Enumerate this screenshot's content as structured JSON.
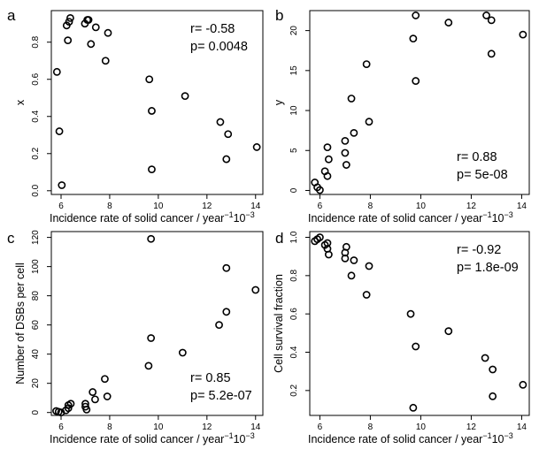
{
  "chart_data": [
    {
      "panel": "a",
      "type": "scatter",
      "xlabel": "Incidence rate of solid cancer / year",
      "xlabel_sup": "−1",
      "xlabel_exp": "10",
      "xlabel_exp_sup": "−3",
      "ylabel": "x",
      "xlim": [
        5.6,
        14.3
      ],
      "ylim": [
        -0.02,
        0.97
      ],
      "xticks": [
        6,
        8,
        10,
        12,
        14
      ],
      "yticks": [
        0.0,
        0.2,
        0.4,
        0.6,
        0.8
      ],
      "ytick_labels": [
        "0.0",
        "0.2",
        "0.4",
        "0.6",
        "0.8"
      ],
      "annotation": [
        "r= -0.58",
        "p= 0.0048"
      ],
      "annotation_pos": "top-right",
      "x": [
        5.83,
        5.93,
        6.03,
        6.23,
        6.28,
        6.33,
        6.38,
        6.98,
        7.08,
        7.13,
        7.23,
        7.43,
        7.83,
        7.93,
        9.63,
        9.73,
        9.73,
        11.1,
        12.55,
        12.8,
        12.87,
        14.05
      ],
      "y": [
        0.64,
        0.32,
        0.03,
        0.89,
        0.81,
        0.91,
        0.93,
        0.9,
        0.92,
        0.92,
        0.79,
        0.88,
        0.7,
        0.85,
        0.6,
        0.43,
        0.115,
        0.51,
        0.37,
        0.17,
        0.305,
        0.235
      ]
    },
    {
      "panel": "b",
      "type": "scatter",
      "xlabel": "Incidence rate of solid cancer / year",
      "xlabel_sup": "−1",
      "xlabel_exp": "10",
      "xlabel_exp_sup": "−3",
      "ylabel": "y",
      "xlim": [
        5.6,
        14.3
      ],
      "ylim": [
        -0.5,
        22.5
      ],
      "xticks": [
        6,
        8,
        10,
        12,
        14
      ],
      "yticks": [
        0,
        5,
        10,
        15,
        20
      ],
      "ytick_labels": [
        "0",
        "5",
        "10",
        "15",
        "20"
      ],
      "annotation": [
        "r= 0.88",
        "p= 5e-08"
      ],
      "annotation_pos": "bottom-right",
      "x": [
        5.8,
        5.9,
        6.0,
        6.2,
        6.3,
        6.3,
        6.35,
        7.0,
        7.0,
        7.05,
        7.25,
        7.35,
        7.85,
        7.95,
        9.7,
        9.8,
        9.8,
        11.1,
        12.6,
        12.8,
        12.8,
        14.05
      ],
      "y": [
        1.0,
        0.4,
        0.05,
        2.4,
        1.8,
        5.4,
        3.9,
        6.2,
        4.7,
        3.2,
        11.5,
        7.2,
        15.8,
        8.6,
        19.0,
        13.7,
        21.9,
        21.0,
        21.9,
        21.3,
        17.1,
        19.5
      ]
    },
    {
      "panel": "c",
      "type": "scatter",
      "xlabel": "Incidence rate of solid cancer / year",
      "xlabel_sup": "−1",
      "xlabel_exp": "10",
      "xlabel_exp_sup": "−3",
      "ylabel": "Number of DSBs per cell",
      "xlim": [
        5.6,
        14.3
      ],
      "ylim": [
        -2,
        124
      ],
      "xticks": [
        6,
        8,
        10,
        12,
        14
      ],
      "yticks": [
        0,
        20,
        40,
        60,
        80,
        100,
        120
      ],
      "ytick_labels": [
        "0",
        "20",
        "40",
        "60",
        "80",
        "100",
        "120"
      ],
      "annotation": [
        "r= 0.85",
        "p= 5.2e-07"
      ],
      "annotation_pos": "bottom-right",
      "x": [
        5.8,
        5.9,
        6.0,
        6.2,
        6.3,
        6.3,
        6.4,
        7.0,
        7.0,
        7.05,
        7.3,
        7.4,
        7.8,
        7.9,
        9.6,
        9.7,
        9.7,
        11.0,
        12.5,
        12.8,
        12.8,
        14.0
      ],
      "y": [
        1,
        0.5,
        0,
        1.5,
        3,
        5,
        6,
        6,
        4,
        2,
        14,
        9,
        23,
        11,
        32,
        51,
        119,
        41,
        60,
        69,
        99,
        84
      ]
    },
    {
      "panel": "d",
      "type": "scatter",
      "xlabel": "Incidence rate of solid cancer / year",
      "xlabel_sup": "−1",
      "xlabel_exp": "10",
      "xlabel_exp_sup": "−3",
      "ylabel": "Cell survival fraction",
      "xlim": [
        5.6,
        14.3
      ],
      "ylim": [
        0.07,
        1.03
      ],
      "xticks": [
        6,
        8,
        10,
        12,
        14
      ],
      "yticks": [
        0.2,
        0.4,
        0.6,
        0.8,
        1.0
      ],
      "ytick_labels": [
        "0.2",
        "0.4",
        "0.6",
        "0.8",
        "1.0"
      ],
      "annotation": [
        "r= -0.92",
        "p= 1.8e-09"
      ],
      "annotation_pos": "top-right",
      "x": [
        5.8,
        5.9,
        6.0,
        6.2,
        6.3,
        6.3,
        6.35,
        7.0,
        7.0,
        7.05,
        7.25,
        7.35,
        7.85,
        7.95,
        9.6,
        9.8,
        9.7,
        11.1,
        12.55,
        12.85,
        12.85,
        14.05
      ],
      "y": [
        0.98,
        0.99,
        1.0,
        0.96,
        0.94,
        0.97,
        0.91,
        0.89,
        0.92,
        0.95,
        0.8,
        0.88,
        0.7,
        0.85,
        0.6,
        0.43,
        0.11,
        0.51,
        0.37,
        0.17,
        0.31,
        0.23
      ]
    }
  ]
}
